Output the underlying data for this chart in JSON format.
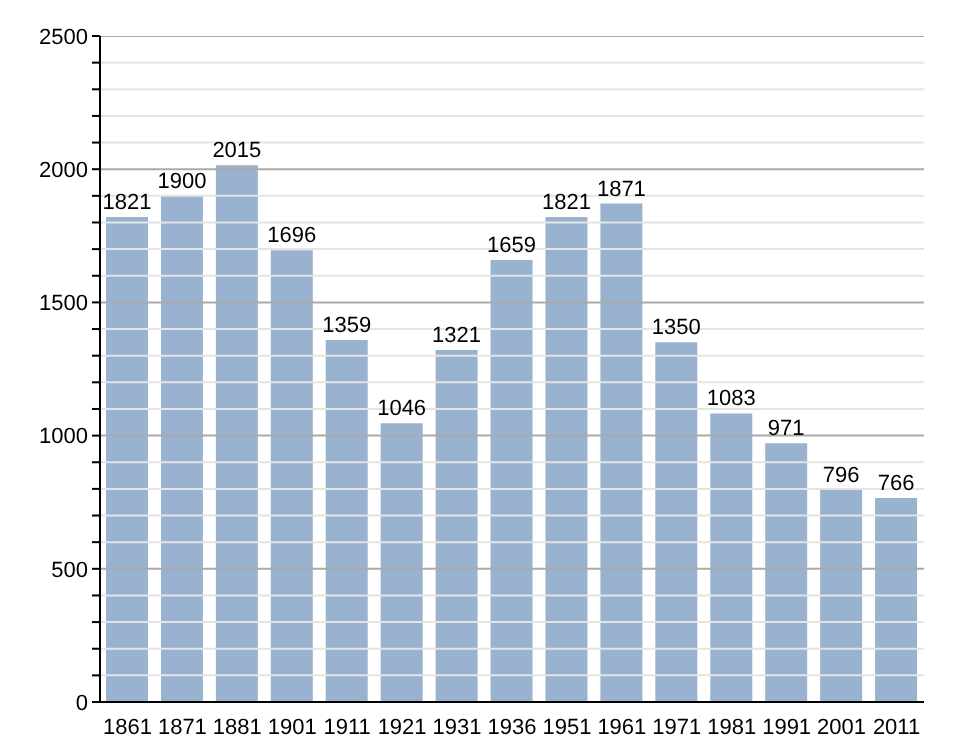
{
  "chart_data": {
    "type": "bar",
    "categories": [
      "1861",
      "1871",
      "1881",
      "1901",
      "1911",
      "1921",
      "1931",
      "1936",
      "1951",
      "1961",
      "1971",
      "1981",
      "1991",
      "2001",
      "2011"
    ],
    "values": [
      1821,
      1900,
      2015,
      1696,
      1359,
      1046,
      1321,
      1659,
      1821,
      1871,
      1350,
      1083,
      971,
      796,
      766
    ],
    "color": "#98b2cf",
    "data_labels": true,
    "grid": "y",
    "ylim": [
      0,
      2500
    ],
    "yticks": [
      0,
      {
        "value": 100,
        "label": null
      },
      {
        "value": 200,
        "label": null
      },
      {
        "value": 300,
        "label": null
      },
      {
        "value": 400,
        "label": null
      },
      500,
      {
        "value": 600,
        "label": null
      },
      {
        "value": 700,
        "label": null
      },
      {
        "value": 800,
        "label": null
      },
      {
        "value": 900,
        "label": null
      },
      1000,
      {
        "value": 1100,
        "label": null
      },
      {
        "value": 1200,
        "label": null
      },
      {
        "value": 1300,
        "label": null
      },
      {
        "value": 1400,
        "label": null
      },
      1500,
      {
        "value": 1600,
        "label": null
      },
      {
        "value": 1700,
        "label": null
      },
      {
        "value": 1800,
        "label": null
      },
      {
        "value": 1900,
        "label": null
      },
      2000,
      {
        "value": 2100,
        "label": null
      },
      {
        "value": 2200,
        "label": null
      },
      {
        "value": 2300,
        "label": null
      },
      {
        "value": 2400,
        "label": null
      },
      2500
    ]
  }
}
